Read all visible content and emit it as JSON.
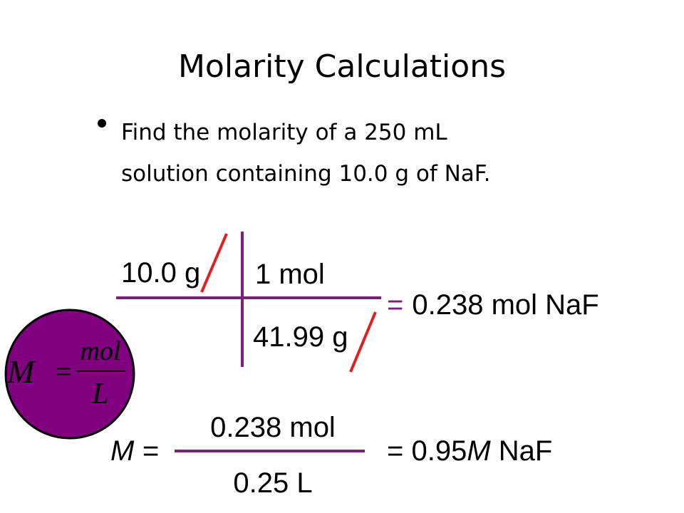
{
  "title": "Molarity Calculations",
  "bullet": {
    "lines": [
      "Find the molarity of a 250 mL",
      "solution containing 10.0 g of NaF."
    ]
  },
  "factor_label": {
    "numerator_left": "10.0 g",
    "numerator_right": "1 mol",
    "denominator_right": "41.99 g",
    "equals": "=",
    "result": "0.238 mol NaF"
  },
  "formula": {
    "symbol": "M",
    "equals": "=",
    "numerator": "mol",
    "denominator": "L"
  },
  "calculation": {
    "lhs": "M =",
    "numerator": "0.238 mol",
    "denominator": "0.25 L",
    "result_prefix": "= 0.95",
    "result_unit": "M",
    "result_suffix": " NaF"
  }
}
